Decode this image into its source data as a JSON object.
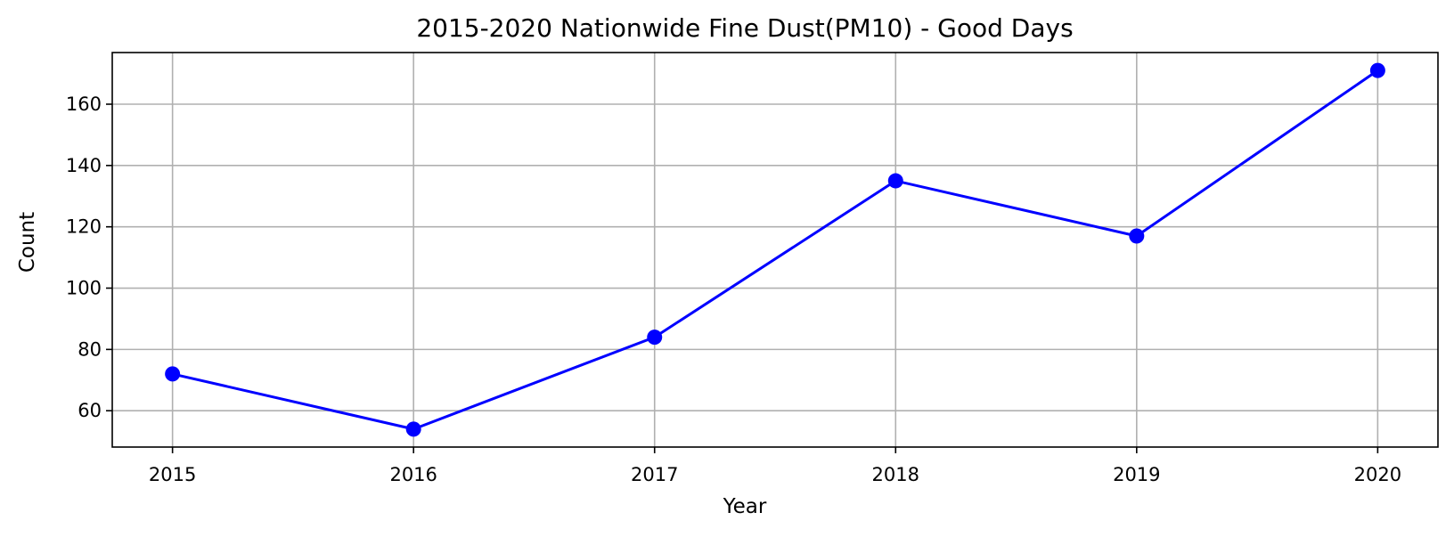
{
  "chart_data": {
    "type": "line",
    "title": "2015-2020 Nationwide Fine Dust(PM10) - Good Days",
    "xlabel": "Year",
    "ylabel": "Count",
    "x": [
      2015,
      2016,
      2017,
      2018,
      2019,
      2020
    ],
    "x_tick_labels": [
      "2015",
      "2016",
      "2017",
      "2018",
      "2019",
      "2020"
    ],
    "series": [
      {
        "values": [
          72,
          54,
          84,
          135,
          117,
          171
        ],
        "color": "#0000ff",
        "marker": "circle"
      }
    ],
    "xlim": [
      2014.75,
      2020.25
    ],
    "ylim": [
      48.15,
      176.85
    ],
    "y_ticks": [
      60,
      80,
      100,
      120,
      140,
      160
    ],
    "y_tick_labels": [
      "60",
      "80",
      "100",
      "120",
      "140",
      "160"
    ],
    "grid": true,
    "grid_color": "#b0b0b0",
    "legend": null
  }
}
